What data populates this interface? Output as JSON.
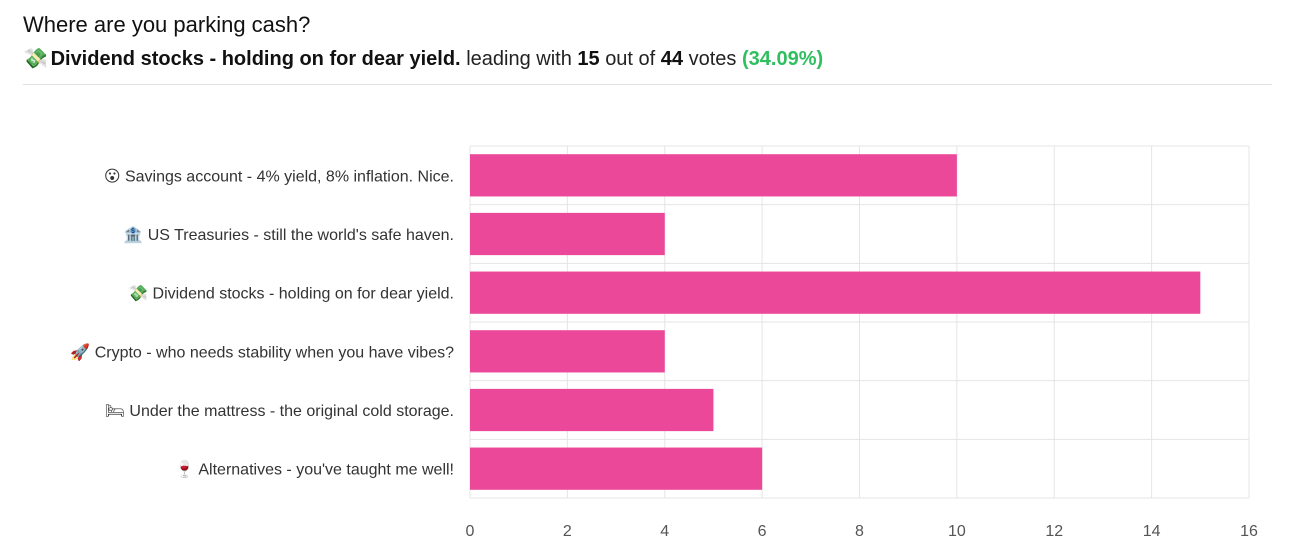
{
  "header": {
    "title": "Where are you parking cash?",
    "leader_emoji": "💸",
    "leader_name": "Dividend stocks - holding on for dear yield.",
    "leading_with_text": "leading with",
    "leader_votes": "15",
    "out_of_text": "out of",
    "total_votes": "44",
    "votes_text": "votes",
    "leader_percent": "(34.09%)"
  },
  "colors": {
    "bar": "#ec4899",
    "grid": "#e5e5e5",
    "percent": "#2fbf5f"
  },
  "chart_data": {
    "type": "bar",
    "orientation": "horizontal",
    "categories": [
      "😮 Savings account - 4% yield, 8% inflation. Nice.",
      "🏦 US Treasuries - still the world's safe haven.",
      "💸 Dividend stocks - holding on for dear yield.",
      "🚀 Crypto - who needs stability when you have vibes?",
      "🛏 Under the mattress - the original cold storage.",
      "🍷 Alternatives - you've taught me well!"
    ],
    "values": [
      10,
      4,
      15,
      4,
      5,
      6
    ],
    "xlim": [
      0,
      16
    ],
    "xticks": [
      0,
      2,
      4,
      6,
      8,
      10,
      12,
      14,
      16
    ],
    "grid": true,
    "legend": "none"
  }
}
